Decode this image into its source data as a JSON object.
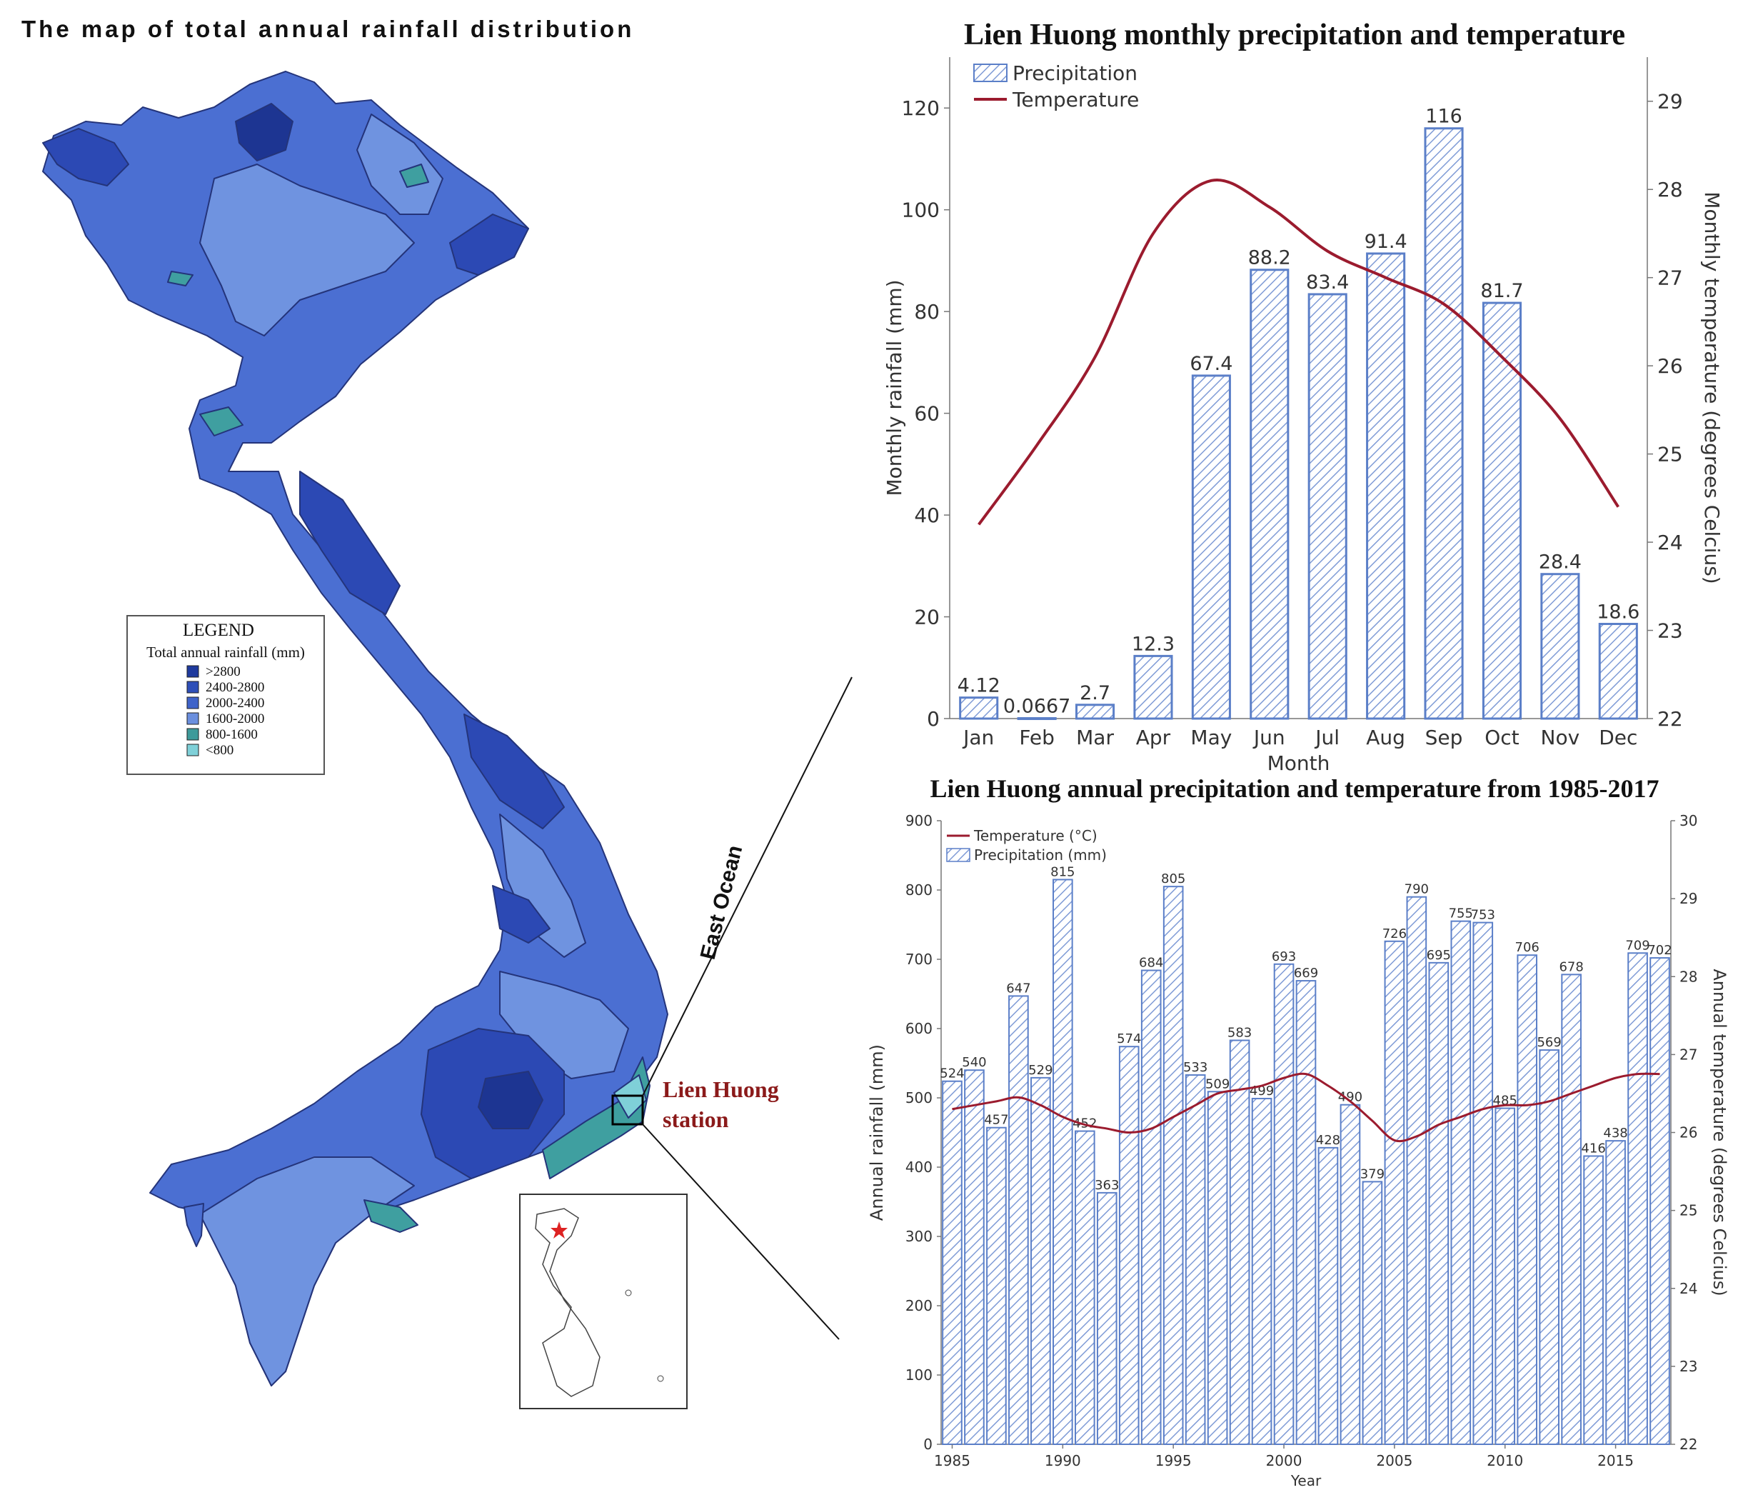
{
  "map": {
    "title": "The map of total annual rainfall distribution",
    "ocean_label": "East Ocean",
    "station_label_line1": "Lien Huong",
    "station_label_line2": "station",
    "legend": {
      "heading": "LEGEND",
      "subheading": "Total annual rainfall (mm)",
      "items": [
        {
          "label": ">2800",
          "color": "#1f3a9e"
        },
        {
          "label": "2400-2800",
          "color": "#2e4fb8"
        },
        {
          "label": "2000-2400",
          "color": "#3f63c9"
        },
        {
          "label": "1600-2000",
          "color": "#6b8fde"
        },
        {
          "label": "800-1600",
          "color": "#3e9a9a"
        },
        {
          "label": "<800",
          "color": "#7fd0d8"
        }
      ]
    },
    "colors": {
      "base": "#4b6fd2",
      "light": "#6f93e0",
      "dark": "#2c49b4",
      "darkest": "#1d3592",
      "teal": "#3f9fa0",
      "station_label": "#8b1a1a"
    }
  },
  "chart_data": [
    {
      "type": "bar",
      "title": "Lien Huong monthly precipitation and temperature",
      "xlabel": "Month",
      "ylabel": "Monthly rainfall (mm)",
      "y2label": "Monthly temperature (degrees Celcius)",
      "ylim": [
        0,
        130
      ],
      "yticks": [
        0,
        20,
        40,
        60,
        80,
        100,
        120
      ],
      "y2lim": [
        22,
        29.5
      ],
      "y2ticks": [
        22,
        23,
        24,
        25,
        26,
        27,
        28,
        29
      ],
      "legend_position": "top-left",
      "categories": [
        "Jan",
        "Feb",
        "Mar",
        "Apr",
        "May",
        "Jun",
        "Jul",
        "Aug",
        "Sep",
        "Oct",
        "Nov",
        "Dec"
      ],
      "series": [
        {
          "name": "Precipitation",
          "kind": "bar",
          "color": "#5b7fc8",
          "values": [
            4.12,
            0.0667,
            2.7,
            12.3,
            67.4,
            88.2,
            83.4,
            91.4,
            116,
            81.7,
            28.4,
            18.6
          ],
          "labels": [
            "4.12",
            "0.0667",
            "2.7",
            "12.3",
            "67.4",
            "88.2",
            "83.4",
            "91.4",
            "116",
            "81.7",
            "28.4",
            "18.6"
          ]
        },
        {
          "name": "Temperature",
          "kind": "line",
          "color": "#9b1b2e",
          "axis": "right",
          "values": [
            24.2,
            25.1,
            26.1,
            27.5,
            28.1,
            27.8,
            27.3,
            27.0,
            26.7,
            26.1,
            25.4,
            24.4
          ]
        }
      ]
    },
    {
      "type": "bar",
      "title": "Lien Huong annual precipitation and temperature from 1985-2017",
      "xlabel": "Year",
      "ylabel": "Annual rainfall (mm)",
      "y2label": "Annual temperature (degrees Celcius)",
      "ylim": [
        0,
        900
      ],
      "yticks": [
        0,
        100,
        200,
        300,
        400,
        500,
        600,
        700,
        800,
        900
      ],
      "y2lim": [
        22,
        30
      ],
      "y2ticks": [
        22,
        23,
        24,
        25,
        26,
        27,
        28,
        29,
        30
      ],
      "xticks": [
        1985,
        1990,
        1995,
        2000,
        2005,
        2010,
        2015
      ],
      "legend_position": "top-left",
      "years": [
        1985,
        1986,
        1987,
        1988,
        1989,
        1990,
        1991,
        1992,
        1993,
        1994,
        1995,
        1996,
        1997,
        1998,
        1999,
        2000,
        2001,
        2002,
        2003,
        2004,
        2005,
        2006,
        2007,
        2008,
        2009,
        2010,
        2011,
        2012,
        2013,
        2014,
        2015,
        2016,
        2017
      ],
      "series": [
        {
          "name": "Precipitation (mm)",
          "kind": "bar",
          "color": "#5b7fc8",
          "values": [
            524,
            540,
            457,
            647,
            529,
            815,
            452,
            363,
            574,
            684,
            805,
            533,
            509,
            583,
            499,
            693,
            669,
            428,
            490,
            379,
            726,
            790,
            695,
            755,
            753,
            485,
            706,
            569,
            678,
            416,
            438,
            709,
            702
          ]
        },
        {
          "name": "Temperature (°C)",
          "kind": "line",
          "color": "#9b1b2e",
          "axis": "right",
          "values": [
            26.3,
            26.35,
            26.4,
            26.45,
            26.35,
            26.2,
            26.1,
            26.05,
            26.0,
            26.05,
            26.2,
            26.35,
            26.5,
            26.55,
            26.6,
            26.7,
            26.75,
            26.6,
            26.4,
            26.15,
            25.9,
            25.95,
            26.1,
            26.2,
            26.3,
            26.35,
            26.35,
            26.4,
            26.5,
            26.6,
            26.7,
            26.75,
            26.75
          ]
        }
      ]
    }
  ]
}
